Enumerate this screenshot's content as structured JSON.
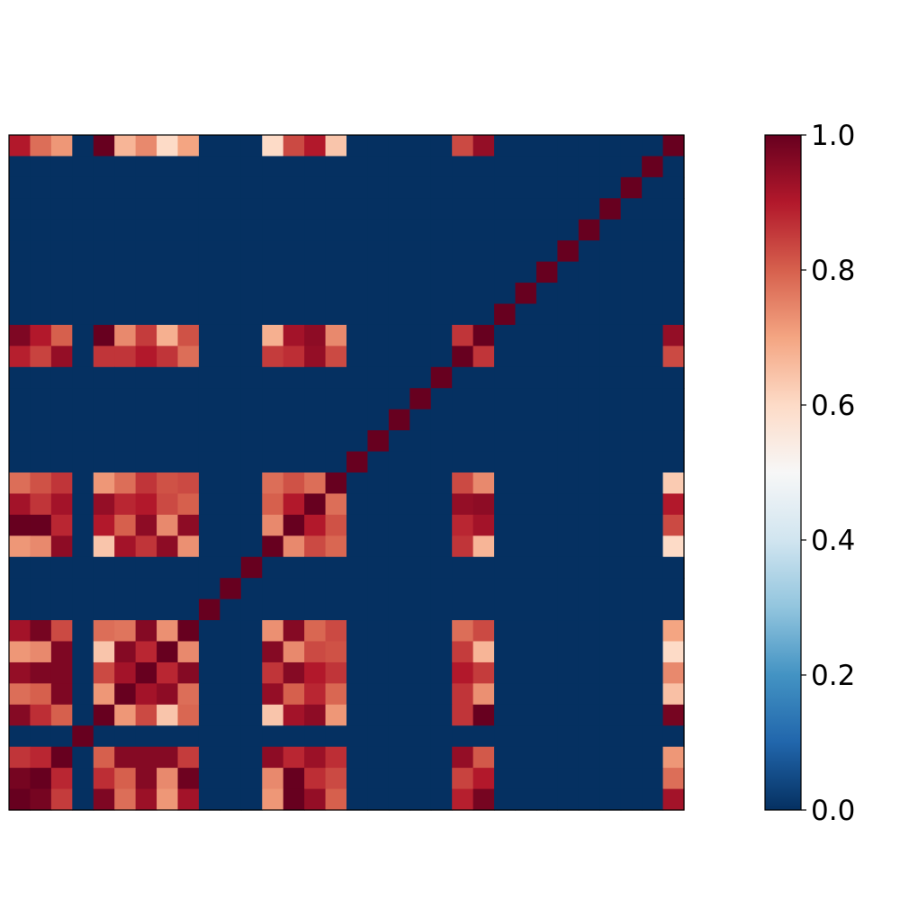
{
  "chart_data": {
    "type": "heatmap",
    "title": "",
    "xlabel": "",
    "ylabel": "",
    "colormap": "RdBu_r",
    "vmin": 0.0,
    "vmax": 1.0,
    "axes_ticks_visible": false,
    "grid": false,
    "colorbar": {
      "placement": "right",
      "ticks": [
        "0.0",
        "0.2",
        "0.4",
        "0.6",
        "0.8",
        "1.0"
      ]
    },
    "matrix": [
      [
        0.9,
        0.78,
        0.72,
        0,
        1.0,
        0.67,
        0.74,
        0.6,
        0.7,
        0,
        0,
        0,
        0.6,
        0.83,
        0.9,
        0.64,
        0,
        0,
        0,
        0,
        0,
        0.83,
        0.94,
        0,
        0,
        0,
        0,
        0,
        0,
        0,
        0,
        1.0
      ],
      [
        0,
        0,
        0,
        0,
        0,
        0,
        0,
        0,
        0,
        0,
        0,
        0,
        0,
        0,
        0,
        0,
        0,
        0,
        0,
        0,
        0,
        0,
        0,
        0,
        0,
        0,
        0,
        0,
        0,
        0,
        1,
        0
      ],
      [
        0,
        0,
        0,
        0,
        0,
        0,
        0,
        0,
        0,
        0,
        0,
        0,
        0,
        0,
        0,
        0,
        0,
        0,
        0,
        0,
        0,
        0,
        0,
        0,
        0,
        0,
        0,
        0,
        0,
        1,
        0,
        0
      ],
      [
        0,
        0,
        0,
        0,
        0,
        0,
        0,
        0,
        0,
        0,
        0,
        0,
        0,
        0,
        0,
        0,
        0,
        0,
        0,
        0,
        0,
        0,
        0,
        0,
        0,
        0,
        0,
        0,
        1,
        0,
        0,
        0
      ],
      [
        0,
        0,
        0,
        0,
        0,
        0,
        0,
        0,
        0,
        0,
        0,
        0,
        0,
        0,
        0,
        0,
        0,
        0,
        0,
        0,
        0,
        0,
        0,
        0,
        0,
        0,
        0,
        1,
        0,
        0,
        0,
        0
      ],
      [
        0,
        0,
        0,
        0,
        0,
        0,
        0,
        0,
        0,
        0,
        0,
        0,
        0,
        0,
        0,
        0,
        0,
        0,
        0,
        0,
        0,
        0,
        0,
        0,
        0,
        0,
        1,
        0,
        0,
        0,
        0,
        0
      ],
      [
        0,
        0,
        0,
        0,
        0,
        0,
        0,
        0,
        0,
        0,
        0,
        0,
        0,
        0,
        0,
        0,
        0,
        0,
        0,
        0,
        0,
        0,
        0,
        0,
        0,
        1,
        0,
        0,
        0,
        0,
        0,
        0
      ],
      [
        0,
        0,
        0,
        0,
        0,
        0,
        0,
        0,
        0,
        0,
        0,
        0,
        0,
        0,
        0,
        0,
        0,
        0,
        0,
        0,
        0,
        0,
        0,
        0,
        1,
        0,
        0,
        0,
        0,
        0,
        0,
        0
      ],
      [
        0,
        0,
        0,
        0,
        0,
        0,
        0,
        0,
        0,
        0,
        0,
        0,
        0,
        0,
        0,
        0,
        0,
        0,
        0,
        0,
        0,
        0,
        0,
        1,
        0,
        0,
        0,
        0,
        0,
        0,
        0,
        0
      ],
      [
        0.97,
        0.9,
        0.8,
        0,
        1.0,
        0.74,
        0.85,
        0.68,
        0.82,
        0,
        0,
        0,
        0.68,
        0.92,
        0.95,
        0.74,
        0,
        0,
        0,
        0,
        0,
        0.86,
        1.0,
        0,
        0,
        0,
        0,
        0,
        0,
        0,
        0,
        0.94
      ],
      [
        0.89,
        0.84,
        0.94,
        0,
        0.86,
        0.86,
        0.9,
        0.86,
        0.78,
        0,
        0,
        0,
        0.85,
        0.87,
        0.94,
        0.83,
        0,
        0,
        0,
        0,
        0,
        1.0,
        0.86,
        0,
        0,
        0,
        0,
        0,
        0,
        0,
        0,
        0.83
      ],
      [
        0,
        0,
        0,
        0,
        0,
        0,
        0,
        0,
        0,
        0,
        0,
        0,
        0,
        0,
        0,
        0,
        0,
        0,
        0,
        0,
        1,
        0,
        0,
        0,
        0,
        0,
        0,
        0,
        0,
        0,
        0,
        0
      ],
      [
        0,
        0,
        0,
        0,
        0,
        0,
        0,
        0,
        0,
        0,
        0,
        0,
        0,
        0,
        0,
        0,
        0,
        0,
        0,
        1,
        0,
        0,
        0,
        0,
        0,
        0,
        0,
        0,
        0,
        0,
        0,
        0
      ],
      [
        0,
        0,
        0,
        0,
        0,
        0,
        0,
        0,
        0,
        0,
        0,
        0,
        0,
        0,
        0,
        0,
        0,
        0,
        1,
        0,
        0,
        0,
        0,
        0,
        0,
        0,
        0,
        0,
        0,
        0,
        0,
        0
      ],
      [
        0,
        0,
        0,
        0,
        0,
        0,
        0,
        0,
        0,
        0,
        0,
        0,
        0,
        0,
        0,
        0,
        0,
        1,
        0,
        0,
        0,
        0,
        0,
        0,
        0,
        0,
        0,
        0,
        0,
        0,
        0,
        0
      ],
      [
        0,
        0,
        0,
        0,
        0,
        0,
        0,
        0,
        0,
        0,
        0,
        0,
        0,
        0,
        0,
        0,
        1,
        0,
        0,
        0,
        0,
        0,
        0,
        0,
        0,
        0,
        0,
        0,
        0,
        0,
        0,
        0
      ],
      [
        0.78,
        0.82,
        0.86,
        0,
        0.72,
        0.78,
        0.86,
        0.82,
        0.83,
        0,
        0,
        0,
        0.78,
        0.82,
        0.78,
        1.0,
        0,
        0,
        0,
        0,
        0,
        0.83,
        0.74,
        0,
        0,
        0,
        0,
        0,
        0,
        0,
        0,
        0.63
      ],
      [
        0.92,
        0.86,
        0.92,
        0,
        0.94,
        0.88,
        0.9,
        0.83,
        0.8,
        0,
        0,
        0,
        0.8,
        0.9,
        1.0,
        0.78,
        0,
        0,
        0,
        0,
        0,
        0.94,
        0.95,
        0,
        0,
        0,
        0,
        0,
        0,
        0,
        0,
        0.9
      ],
      [
        1.0,
        1.0,
        0.88,
        0,
        0.9,
        0.8,
        0.95,
        0.74,
        0.95,
        0,
        0,
        0,
        0.74,
        1.0,
        0.9,
        0.82,
        0,
        0,
        0,
        0,
        0,
        0.88,
        0.92,
        0,
        0,
        0,
        0,
        0,
        0,
        0,
        0,
        0.83
      ],
      [
        0.72,
        0.74,
        0.95,
        0,
        0.64,
        0.92,
        0.86,
        0.95,
        0.73,
        0,
        0,
        0,
        1.0,
        0.74,
        0.83,
        0.79,
        0,
        0,
        0,
        0,
        0,
        0.86,
        0.67,
        0,
        0,
        0,
        0,
        0,
        0,
        0,
        0,
        0.6
      ],
      [
        0,
        0,
        0,
        0,
        0,
        0,
        0,
        0,
        0,
        0,
        0,
        1,
        0,
        0,
        0,
        0,
        0,
        0,
        0,
        0,
        0,
        0,
        0,
        0,
        0,
        0,
        0,
        0,
        0,
        0,
        0,
        0
      ],
      [
        0,
        0,
        0,
        0,
        0,
        0,
        0,
        0,
        0,
        0,
        1,
        0,
        0,
        0,
        0,
        0,
        0,
        0,
        0,
        0,
        0,
        0,
        0,
        0,
        0,
        0,
        0,
        0,
        0,
        0,
        0,
        0
      ],
      [
        0,
        0,
        0,
        0,
        0,
        0,
        0,
        0,
        0,
        1,
        0,
        0,
        0,
        0,
        0,
        0,
        0,
        0,
        0,
        0,
        0,
        0,
        0,
        0,
        0,
        0,
        0,
        0,
        0,
        0,
        0,
        0
      ],
      [
        0.92,
        0.98,
        0.83,
        0,
        0.78,
        0.77,
        0.96,
        0.73,
        1.0,
        0,
        0,
        0,
        0.73,
        0.96,
        0.79,
        0.83,
        0,
        0,
        0,
        0,
        0,
        0.78,
        0.83,
        0,
        0,
        0,
        0,
        0,
        0,
        0,
        0,
        0.7
      ],
      [
        0.72,
        0.74,
        0.97,
        0,
        0.64,
        0.96,
        0.88,
        1.0,
        0.74,
        0,
        0,
        0,
        0.96,
        0.74,
        0.83,
        0.82,
        0,
        0,
        0,
        0,
        0,
        0.85,
        0.67,
        0,
        0,
        0,
        0,
        0,
        0,
        0,
        0,
        0.6
      ],
      [
        0.94,
        0.97,
        0.97,
        0,
        0.83,
        0.92,
        1.0,
        0.88,
        0.96,
        0,
        0,
        0,
        0.86,
        0.96,
        0.9,
        0.86,
        0,
        0,
        0,
        0,
        0,
        0.9,
        0.85,
        0,
        0,
        0,
        0,
        0,
        0,
        0,
        0,
        0.74
      ],
      [
        0.78,
        0.8,
        0.97,
        0,
        0.72,
        1.0,
        0.92,
        0.95,
        0.78,
        0,
        0,
        0,
        0.94,
        0.8,
        0.88,
        0.79,
        0,
        0,
        0,
        0,
        0,
        0.86,
        0.73,
        0,
        0,
        0,
        0,
        0,
        0,
        0,
        0,
        0.65
      ],
      [
        0.96,
        0.87,
        0.8,
        0,
        1.0,
        0.72,
        0.83,
        0.64,
        0.79,
        0,
        0,
        0,
        0.64,
        0.92,
        0.95,
        0.72,
        0,
        0,
        0,
        0,
        0,
        0.86,
        1.0,
        0,
        0,
        0,
        0,
        0,
        0,
        0,
        0,
        0.98
      ],
      [
        0,
        0,
        0,
        1,
        0,
        0,
        0,
        0,
        0,
        0,
        0,
        0,
        0,
        0,
        0,
        0,
        0,
        0,
        0,
        0,
        0,
        0,
        0,
        0,
        0,
        0,
        0,
        0,
        0,
        0,
        0,
        0
      ],
      [
        0.86,
        0.88,
        1.0,
        0,
        0.8,
        0.96,
        0.96,
        0.96,
        0.85,
        0,
        0,
        0,
        0.95,
        0.88,
        0.93,
        0.87,
        0,
        0,
        0,
        0,
        0,
        0.94,
        0.81,
        0,
        0,
        0,
        0,
        0,
        0,
        0,
        0,
        0.72
      ],
      [
        0.98,
        1.0,
        0.88,
        0,
        0.87,
        0.8,
        0.96,
        0.74,
        0.99,
        0,
        0,
        0,
        0.74,
        1.0,
        0.87,
        0.83,
        0,
        0,
        0,
        0,
        0,
        0.84,
        0.9,
        0,
        0,
        0,
        0,
        0,
        0,
        0,
        0,
        0.78
      ],
      [
        1.0,
        0.98,
        0.85,
        0,
        0.97,
        0.78,
        0.93,
        0.72,
        0.92,
        0,
        0,
        0,
        0.72,
        1.0,
        0.94,
        0.8,
        0,
        0,
        0,
        0,
        0,
        0.89,
        0.98,
        0,
        0,
        0,
        0,
        0,
        0,
        0,
        0,
        0.92
      ]
    ]
  }
}
